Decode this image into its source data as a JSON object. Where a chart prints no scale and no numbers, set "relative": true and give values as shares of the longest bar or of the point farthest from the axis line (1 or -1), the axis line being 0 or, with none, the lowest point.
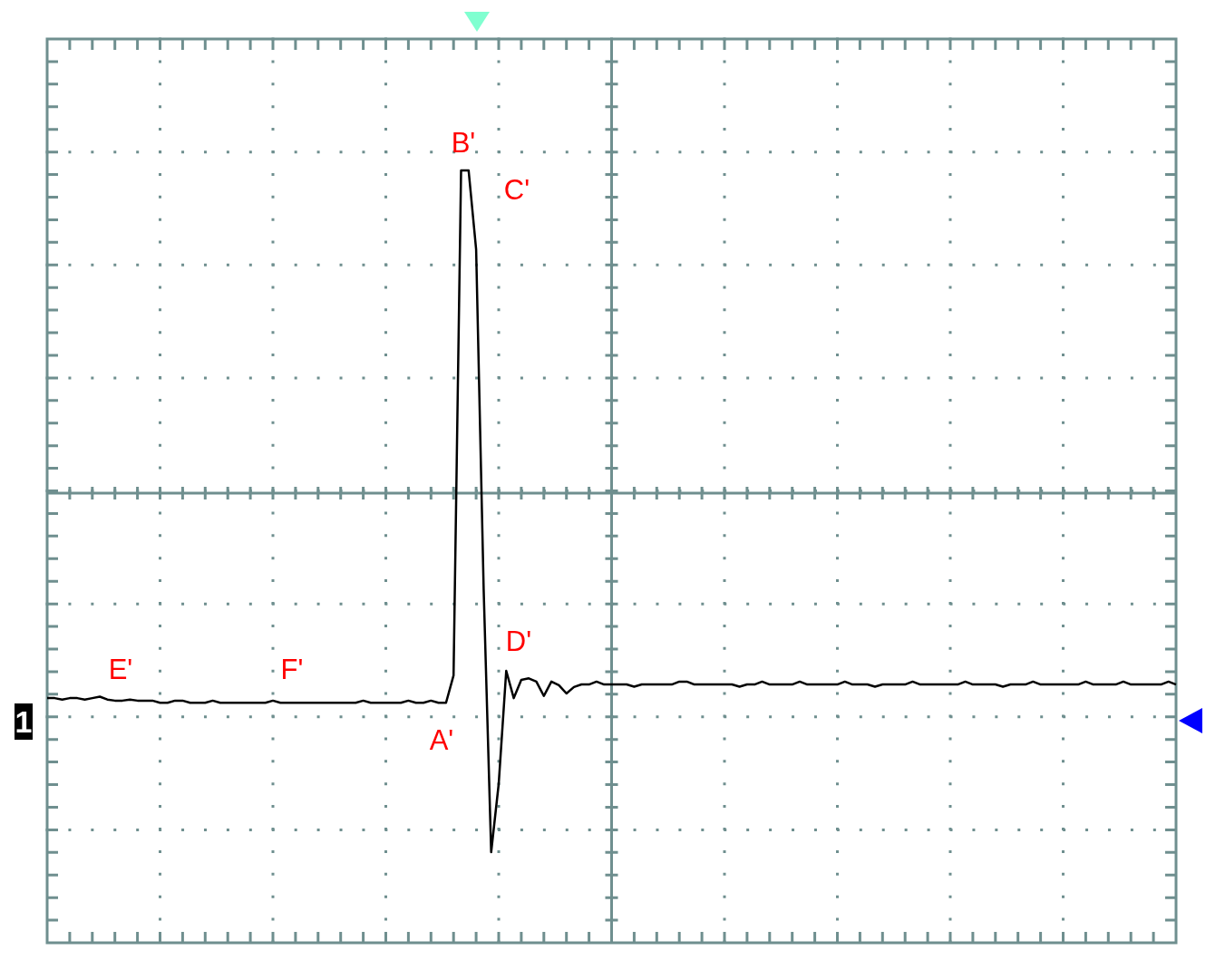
{
  "chart_data": {
    "type": "line",
    "relative": true,
    "grid": true,
    "legend": false,
    "marker": "none",
    "line_style": "solid",
    "categories": [
      null,
      null,
      null,
      null,
      null,
      null,
      null,
      null,
      null,
      null,
      null,
      null,
      null,
      null,
      null,
      null,
      null,
      null,
      null,
      null,
      null,
      null,
      null,
      null,
      null,
      null,
      null,
      null,
      null,
      null,
      null,
      null,
      null,
      null,
      null,
      null,
      null,
      null,
      null,
      null,
      null,
      null,
      null,
      null,
      null,
      null,
      null,
      null,
      null,
      null,
      null,
      null,
      null,
      null,
      null,
      null,
      null,
      null,
      null,
      null,
      null,
      null,
      null,
      null,
      null,
      null,
      null,
      null,
      null,
      null,
      null,
      null,
      null,
      null,
      null,
      null,
      null,
      null,
      null,
      null,
      null,
      null,
      null,
      null,
      null,
      null,
      null,
      null,
      null,
      null,
      null,
      null,
      null,
      null,
      null,
      null,
      null,
      null,
      null,
      null,
      null,
      null,
      null,
      null,
      null,
      null,
      null,
      null,
      null,
      null,
      null,
      null,
      null,
      null,
      null,
      null,
      null,
      null,
      null,
      null,
      null,
      null,
      null,
      null,
      null,
      null,
      null,
      null,
      null,
      null,
      null,
      null,
      null,
      null,
      null,
      null,
      null,
      null,
      null,
      null,
      null,
      null,
      null,
      null,
      null,
      null,
      null,
      null,
      null,
      null,
      null
    ],
    "series": [
      {
        "color": "#000000",
        "values": [
          -0.571,
          -0.571,
          -0.575,
          -0.571,
          -0.571,
          -0.575,
          -0.571,
          -0.567,
          -0.575,
          -0.578,
          -0.578,
          -0.575,
          -0.578,
          -0.578,
          -0.578,
          -0.584,
          -0.584,
          -0.578,
          -0.578,
          -0.584,
          -0.584,
          -0.584,
          -0.578,
          -0.584,
          -0.584,
          -0.584,
          -0.584,
          -0.584,
          -0.584,
          -0.584,
          -0.578,
          -0.584,
          -0.584,
          -0.584,
          -0.584,
          -0.584,
          -0.584,
          -0.584,
          -0.584,
          -0.584,
          -0.584,
          -0.584,
          -0.578,
          -0.584,
          -0.584,
          -0.584,
          -0.584,
          -0.584,
          -0.578,
          -0.584,
          -0.584,
          -0.578,
          -0.584,
          -0.584,
          -0.508,
          0.899,
          0.899,
          0.679,
          -0.267,
          -1,
          -0.81,
          -0.495,
          -0.571,
          -0.52,
          -0.516,
          -0.525,
          -0.565,
          -0.525,
          -0.535,
          -0.558,
          -0.54,
          -0.533,
          -0.533,
          -0.525,
          -0.533,
          -0.533,
          -0.533,
          -0.533,
          -0.539,
          -0.533,
          -0.533,
          -0.533,
          -0.533,
          -0.533,
          -0.525,
          -0.525,
          -0.533,
          -0.533,
          -0.533,
          -0.533,
          -0.533,
          -0.533,
          -0.539,
          -0.533,
          -0.533,
          -0.525,
          -0.533,
          -0.533,
          -0.533,
          -0.533,
          -0.525,
          -0.533,
          -0.533,
          -0.533,
          -0.533,
          -0.533,
          -0.525,
          -0.533,
          -0.533,
          -0.533,
          -0.539,
          -0.533,
          -0.533,
          -0.533,
          -0.533,
          -0.525,
          -0.533,
          -0.533,
          -0.533,
          -0.533,
          -0.533,
          -0.533,
          -0.525,
          -0.533,
          -0.533,
          -0.533,
          -0.533,
          -0.539,
          -0.533,
          -0.533,
          -0.533,
          -0.525,
          -0.533,
          -0.533,
          -0.533,
          -0.533,
          -0.533,
          -0.533,
          -0.525,
          -0.533,
          -0.533,
          -0.533,
          -0.533,
          -0.525,
          -0.533,
          -0.533,
          -0.533,
          -0.533,
          -0.533,
          -0.525,
          -0.533
        ]
      }
    ],
    "annotations": [
      "B'",
      "C'",
      "D'",
      "A'",
      "E'",
      "F'",
      "1"
    ]
  }
}
